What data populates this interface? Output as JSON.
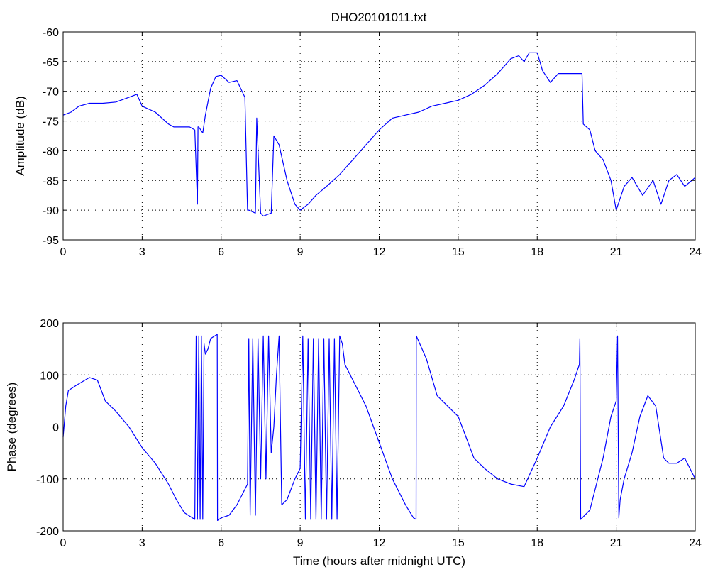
{
  "title": "DHO20101011.txt",
  "colors": {
    "series": "#0000ff",
    "axes": "#000000",
    "grid": "#000000",
    "background": "#ffffff"
  },
  "chart_data": [
    {
      "type": "line",
      "title": "DHO20101011.txt",
      "xlabel": "",
      "ylabel": "Amplitude (dB)",
      "xlim": [
        0,
        24
      ],
      "ylim": [
        -95,
        -60
      ],
      "xticks": [
        "0",
        "3",
        "6",
        "9",
        "12",
        "15",
        "18",
        "21",
        "24"
      ],
      "yticks": [
        "-60",
        "-65",
        "-70",
        "-75",
        "-80",
        "-85",
        "-90",
        "-95"
      ],
      "grid": true,
      "series": [
        {
          "x": [
            0,
            0.3,
            0.6,
            1.0,
            1.5,
            2.0,
            2.5,
            2.8,
            3.0,
            3.5,
            4.0,
            4.2,
            4.5,
            4.8,
            5.0,
            5.1,
            5.12,
            5.15,
            5.3,
            5.4,
            5.6,
            5.8,
            6.0,
            6.3,
            6.6,
            6.9,
            7.0,
            7.05,
            7.3,
            7.35,
            7.5,
            7.6,
            7.9,
            8.0,
            8.2,
            8.5,
            8.8,
            9.0,
            9.3,
            9.6,
            10.0,
            10.5,
            11.0,
            11.5,
            12.0,
            12.5,
            13.0,
            13.5,
            14.0,
            14.5,
            15.0,
            15.5,
            16.0,
            16.5,
            17.0,
            17.3,
            17.5,
            17.7,
            18.0,
            18.2,
            18.5,
            18.8,
            19.0,
            19.4,
            19.7,
            19.75,
            20.0,
            20.2,
            20.5,
            20.8,
            21.0,
            21.3,
            21.6,
            22.0,
            22.4,
            22.7,
            23.0,
            23.3,
            23.6,
            24.0
          ],
          "y": [
            -74,
            -73.5,
            -72.5,
            -72,
            -72,
            -71.8,
            -71,
            -70.5,
            -72.5,
            -73.5,
            -75.5,
            -76,
            -76,
            -76,
            -76.5,
            -89,
            -76,
            -76,
            -77,
            -74,
            -69.5,
            -67.5,
            -67.3,
            -68.5,
            -68.2,
            -71,
            -90,
            -90,
            -90.5,
            -74.5,
            -90.5,
            -91,
            -90.5,
            -77.5,
            -79,
            -85,
            -89,
            -90,
            -89,
            -87.5,
            -86,
            -84,
            -81.5,
            -79,
            -76.5,
            -74.5,
            -74,
            -73.5,
            -72.5,
            -72,
            -71.5,
            -70.5,
            -69,
            -67,
            -64.5,
            -64,
            -65,
            -63.5,
            -63.5,
            -66.5,
            -68.5,
            -67,
            -67,
            -67,
            -67,
            -75.5,
            -76.5,
            -80,
            -81.5,
            -85,
            -90,
            -86,
            -84.5,
            -87.5,
            -85,
            -89,
            -85,
            -84,
            -86,
            -84.5
          ]
        }
      ]
    },
    {
      "type": "line",
      "title": "",
      "xlabel": "Time (hours after midnight UTC)",
      "ylabel": "Phase (degrees)",
      "xlim": [
        0,
        24
      ],
      "ylim": [
        -200,
        200
      ],
      "xticks": [
        "0",
        "3",
        "6",
        "9",
        "12",
        "15",
        "18",
        "21",
        "24"
      ],
      "yticks": [
        "200",
        "100",
        "0",
        "-100",
        "-200"
      ],
      "grid": true,
      "series": [
        {
          "x": [
            0,
            0.1,
            0.2,
            0.5,
            1.0,
            1.3,
            1.6,
            2.0,
            2.5,
            3.0,
            3.5,
            4.0,
            4.3,
            4.6,
            5.0,
            5.05,
            5.1,
            5.15,
            5.2,
            5.25,
            5.3,
            5.35,
            5.4,
            5.5,
            5.6,
            5.85,
            5.86,
            6.0,
            6.3,
            6.6,
            7.0,
            7.05,
            7.1,
            7.2,
            7.3,
            7.4,
            7.5,
            7.6,
            7.7,
            7.8,
            7.9,
            8.0,
            8.1,
            8.2,
            8.3,
            8.5,
            8.8,
            9.0,
            9.1,
            9.2,
            9.3,
            9.4,
            9.5,
            9.6,
            9.7,
            9.8,
            9.9,
            10.0,
            10.1,
            10.2,
            10.3,
            10.4,
            10.5,
            10.6,
            10.7,
            11.0,
            11.5,
            12.0,
            12.5,
            13.0,
            13.3,
            13.4,
            13.41,
            13.8,
            14.2,
            14.6,
            15.0,
            15.3,
            15.6,
            16.0,
            16.5,
            17.0,
            17.5,
            18.0,
            18.5,
            19.0,
            19.4,
            19.6,
            19.62,
            19.65,
            20.0,
            20.5,
            20.8,
            21.0,
            21.05,
            21.1,
            21.15,
            21.3,
            21.6,
            21.9,
            22.2,
            22.5,
            22.8,
            23.0,
            23.3,
            23.6,
            24.0
          ],
          "y": [
            -20,
            40,
            70,
            80,
            95,
            90,
            50,
            30,
            0,
            -40,
            -70,
            -110,
            -140,
            -165,
            -178,
            175,
            -178,
            175,
            -178,
            175,
            -178,
            160,
            140,
            150,
            170,
            178,
            -180,
            -175,
            -170,
            -150,
            -110,
            170,
            -170,
            170,
            -170,
            170,
            -100,
            175,
            -100,
            175,
            -50,
            0,
            100,
            175,
            -150,
            -140,
            -100,
            -80,
            175,
            -178,
            170,
            -178,
            170,
            -178,
            170,
            -178,
            170,
            -178,
            170,
            -178,
            170,
            -178,
            175,
            160,
            120,
            90,
            40,
            -30,
            -100,
            -150,
            -175,
            -178,
            175,
            130,
            60,
            40,
            20,
            -20,
            -60,
            -80,
            -100,
            -110,
            -115,
            -60,
            0,
            40,
            90,
            120,
            170,
            -178,
            -160,
            -60,
            20,
            50,
            175,
            -175,
            -140,
            -100,
            -50,
            20,
            60,
            40,
            -60,
            -70,
            -70,
            -60,
            -100
          ]
        }
      ]
    }
  ]
}
